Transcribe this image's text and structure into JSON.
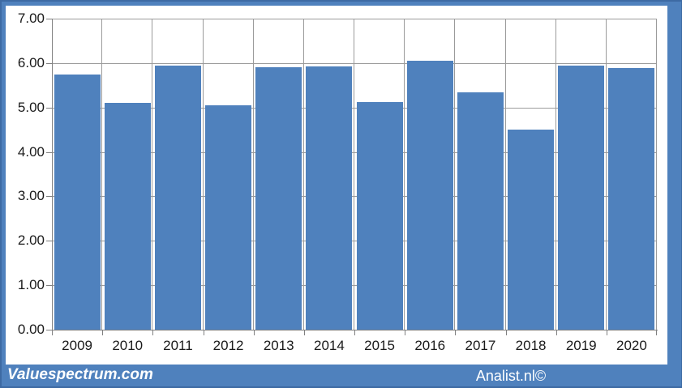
{
  "chart_data": {
    "type": "bar",
    "title": "",
    "categories": [
      "2009",
      "2010",
      "2011",
      "2012",
      "2013",
      "2014",
      "2015",
      "2016",
      "2017",
      "2018",
      "2019",
      "2020"
    ],
    "values": [
      5.75,
      5.1,
      5.95,
      5.05,
      5.9,
      5.92,
      5.12,
      6.05,
      5.35,
      4.5,
      5.95,
      5.88
    ],
    "xlabel": "",
    "ylabel": "",
    "ylim": [
      0,
      7
    ],
    "ytick_step": 1,
    "ytick_labels_top_to_bottom": [
      "7.00",
      "6.00",
      "5.00",
      "4.00",
      "3.00",
      "2.00",
      "1.00",
      "0.00"
    ],
    "grid": "horizontal and vertical major gridlines, gray",
    "legend": "none",
    "bar_color": "#4f81bd"
  },
  "footer": {
    "left_watermark": "Valuespectrum.com",
    "right_watermark": "Analist.nl©"
  },
  "colors": {
    "frame_blue": "#4f81bd",
    "frame_edge": "#3d6aa3",
    "bar_blue": "#4f81bd",
    "gridline": "#9b9b9b",
    "axis": "#808080",
    "chart_background": "#ffffff",
    "label_text": "#1a1a1a",
    "watermark_text": "#ffffff"
  }
}
